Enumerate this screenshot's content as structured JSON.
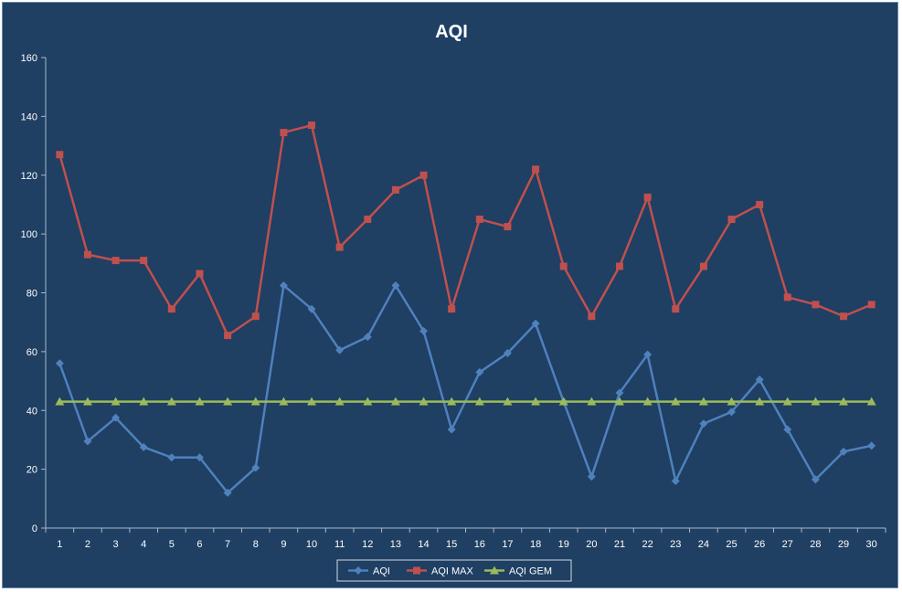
{
  "chart_data": {
    "type": "line",
    "title": "AQI",
    "xlabel": "",
    "ylabel": "",
    "categories": [
      "1",
      "2",
      "3",
      "4",
      "5",
      "6",
      "7",
      "8",
      "9",
      "10",
      "11",
      "12",
      "13",
      "14",
      "15",
      "16",
      "17",
      "18",
      "19",
      "20",
      "21",
      "22",
      "23",
      "24",
      "25",
      "26",
      "27",
      "28",
      "29",
      "30"
    ],
    "ylim": [
      0,
      160
    ],
    "yticks": [
      0,
      20,
      40,
      60,
      80,
      100,
      120,
      140,
      160
    ],
    "grid": false,
    "legend": "bottom",
    "series": [
      {
        "name": "AQI",
        "color": "#4f81bd",
        "marker": "diamond",
        "values": [
          56,
          29.5,
          37.5,
          27.5,
          24,
          24,
          12,
          20.5,
          82.5,
          74.5,
          60.5,
          65,
          82.5,
          67,
          33.5,
          53,
          59.5,
          69.5,
          43,
          17.5,
          46,
          59,
          16,
          35.5,
          39.5,
          50.5,
          33.5,
          16.5,
          26,
          28
        ]
      },
      {
        "name": "AQI MAX",
        "color": "#c0504d",
        "marker": "square",
        "values": [
          127,
          93,
          91,
          91,
          74.5,
          86.5,
          65.5,
          72,
          134.5,
          137,
          95.5,
          105,
          115,
          120,
          74.5,
          105,
          102.5,
          122,
          89,
          72,
          89,
          112.5,
          74.5,
          89,
          105,
          110,
          78.5,
          76,
          72,
          76
        ]
      },
      {
        "name": "AQI GEM",
        "color": "#9bbb59",
        "marker": "triangle",
        "values": [
          43,
          43,
          43,
          43,
          43,
          43,
          43,
          43,
          43,
          43,
          43,
          43,
          43,
          43,
          43,
          43,
          43,
          43,
          43,
          43,
          43,
          43,
          43,
          43,
          43,
          43,
          43,
          43,
          43,
          43
        ]
      }
    ]
  }
}
